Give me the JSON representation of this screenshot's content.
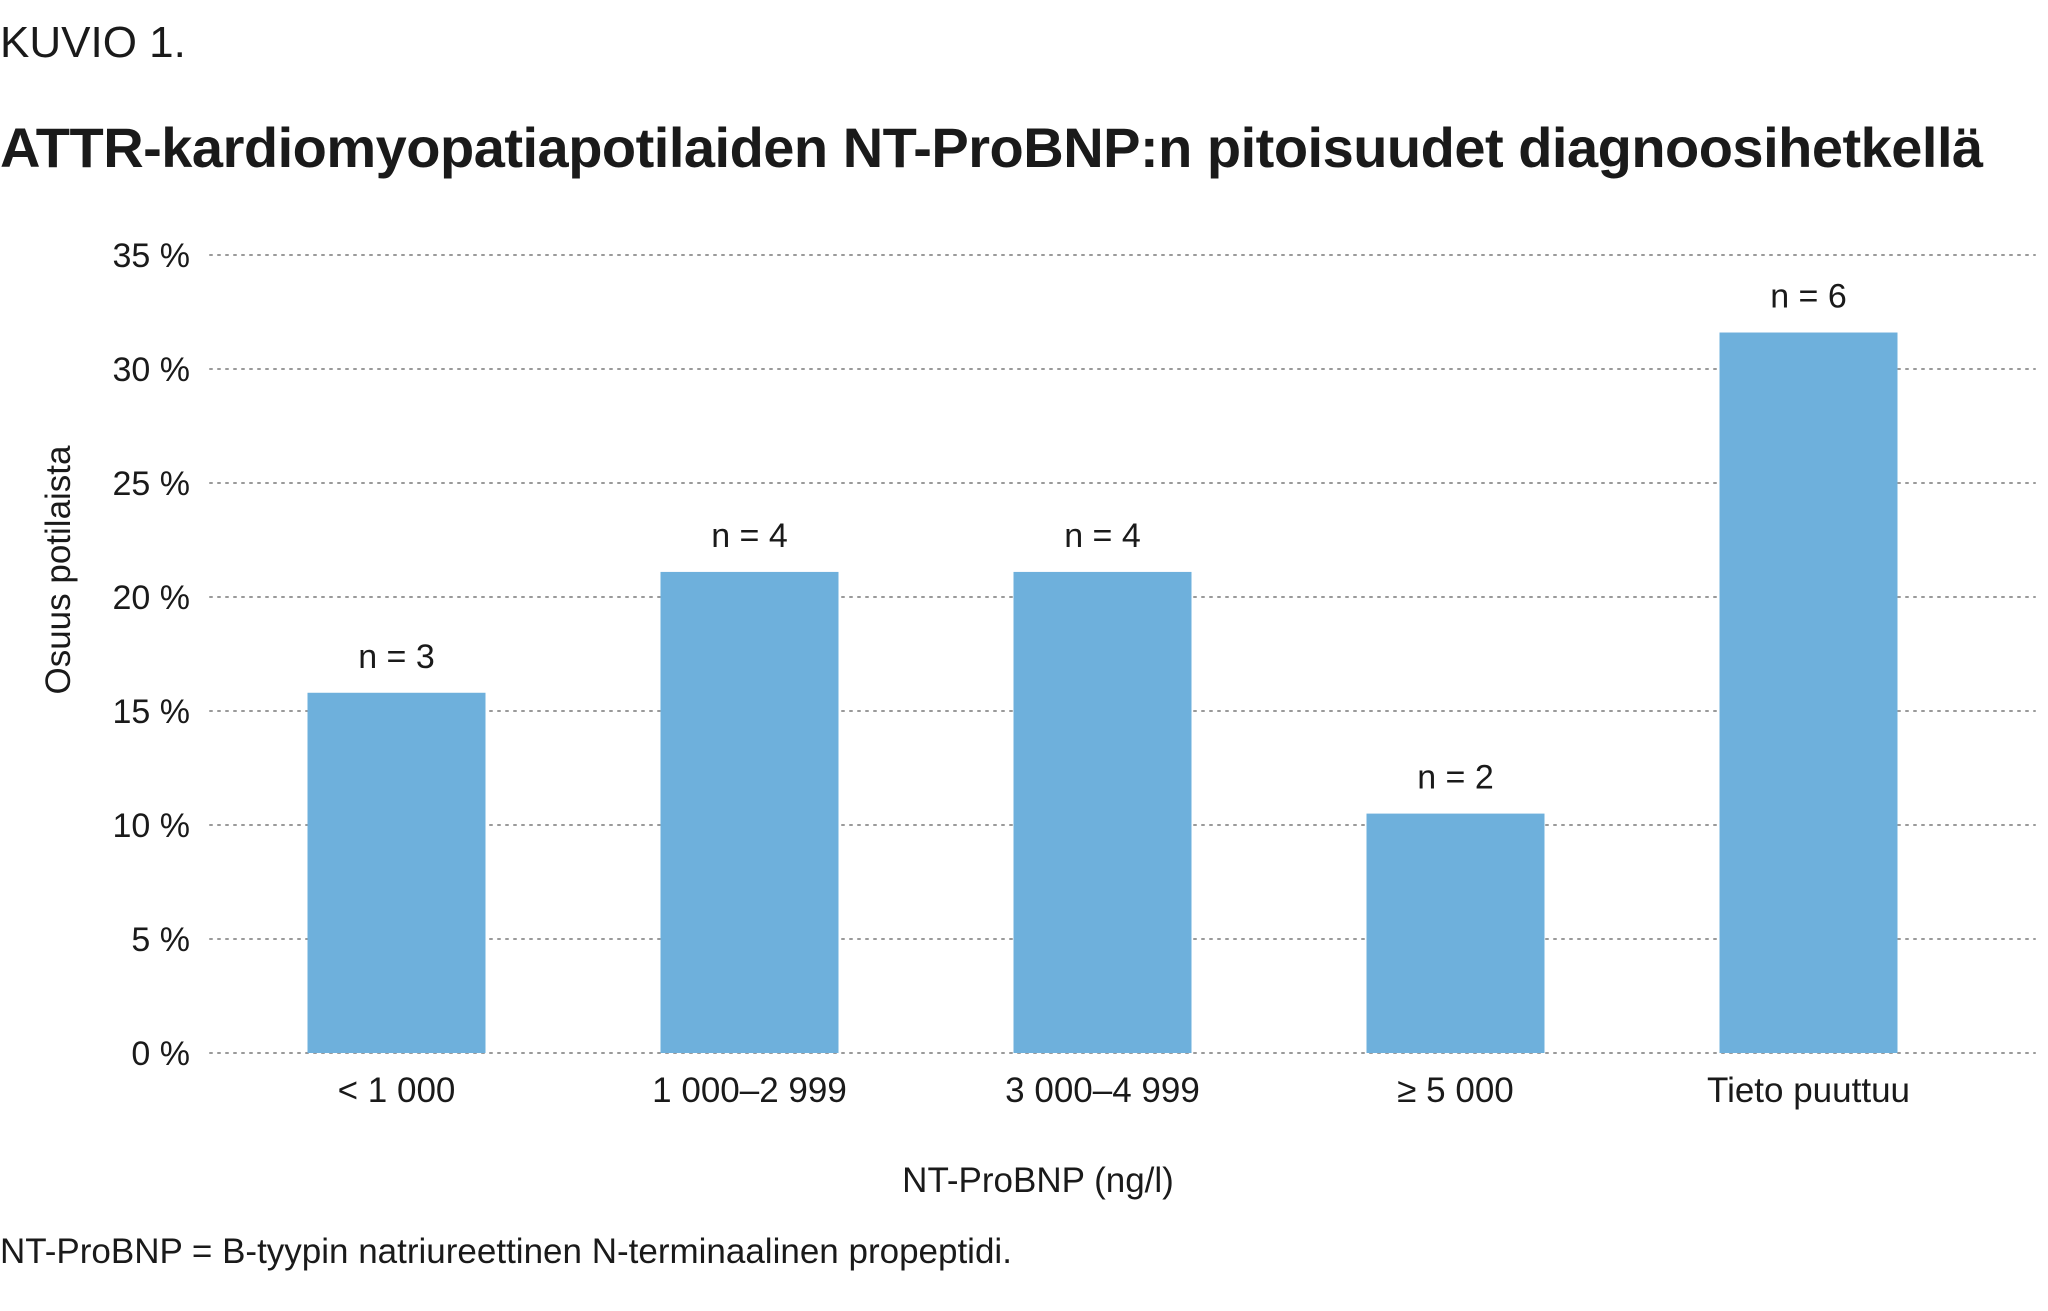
{
  "figure_label": "KUVIO 1.",
  "footnote": "NT-ProBNP = B-tyypin natriureettinen N-terminaalinen propeptidi.",
  "colors": {
    "bar": "#6eb0dc",
    "grid": "#9a9a9a",
    "text": "#1a1a1a"
  },
  "chart_data": {
    "type": "bar",
    "title": "ATTR-kardiomyopatiapotilaiden NT-ProBNP:n pitoisuudet diagnoosihetkellä",
    "xlabel": "NT-ProBNP (ng/l)",
    "ylabel": "Osuus potilaista",
    "categories": [
      "< 1 000",
      "1 000–2 999",
      "3 000–4 999",
      "≥ 5 000",
      "Tieto puuttuu"
    ],
    "values": [
      15.8,
      21.1,
      21.1,
      10.5,
      31.6
    ],
    "bar_labels": [
      "n = 3",
      "n = 4",
      "n = 4",
      "n = 2",
      "n = 6"
    ],
    "ylim": [
      0,
      35
    ],
    "yticks": [
      0,
      5,
      10,
      15,
      20,
      25,
      30,
      35
    ],
    "ytick_labels": [
      "0 %",
      "5 %",
      "10 %",
      "15 %",
      "20 %",
      "25 %",
      "30 %",
      "35 %"
    ],
    "grid": true,
    "grid_style": "dotted"
  }
}
